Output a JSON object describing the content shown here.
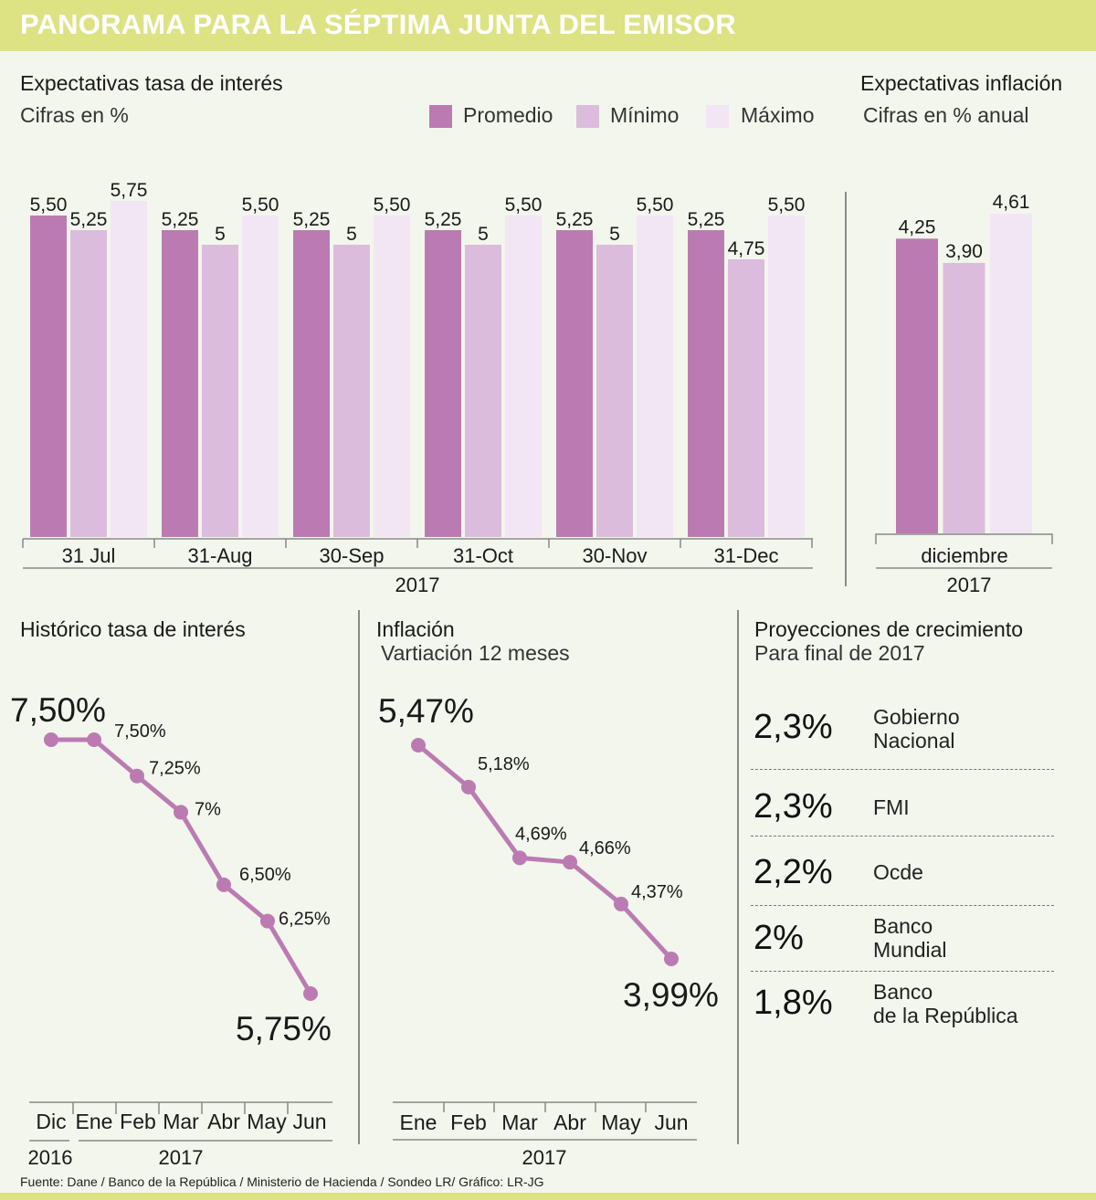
{
  "header": {
    "title": "PANORAMA PARA LA SÉPTIMA JUNTA DEL EMISOR"
  },
  "colors": {
    "promedio": "#bb7bb2",
    "minimo": "#dcbcdc",
    "maximo": "#f2e6f4",
    "line": "#bb7bb2",
    "header_bg": "#dde283",
    "background": "#f2f6ec"
  },
  "legend": {
    "items": [
      {
        "label": "Promedio",
        "color": "#bb7bb2"
      },
      {
        "label": "Mínimo",
        "color": "#dcbcdc"
      },
      {
        "label": "Máximo",
        "color": "#f2e6f4"
      }
    ]
  },
  "chart_data": [
    {
      "id": "interest-expectations",
      "type": "bar",
      "title": "Expectativas tasa de interés",
      "subtitle": "Cifras en %",
      "categories": [
        "31 Jul",
        "31-Aug",
        "30-Sep",
        "31-Oct",
        "30-Nov",
        "31-Dec"
      ],
      "year_label": "2017",
      "series": [
        {
          "name": "Promedio",
          "values": [
            5.5,
            5.25,
            5.25,
            5.25,
            5.25,
            5.25
          ],
          "labels": [
            "5,50",
            "5,25",
            "5,25",
            "5,25",
            "5,25",
            "5,25"
          ]
        },
        {
          "name": "Mínimo",
          "values": [
            5.25,
            5,
            5,
            5,
            5,
            4.75
          ],
          "labels": [
            "5,25",
            "5",
            "5",
            "5",
            "5",
            "4,75"
          ]
        },
        {
          "name": "Máximo",
          "values": [
            5.75,
            5.5,
            5.5,
            5.5,
            5.5,
            5.5
          ],
          "labels": [
            "5,75",
            "5,50",
            "5,50",
            "5,50",
            "5,50",
            "5,50"
          ]
        }
      ],
      "ylim": [
        0,
        5.75
      ],
      "grid": false,
      "legend": "top-right"
    },
    {
      "id": "inflation-expectations",
      "type": "bar",
      "title": "Expectativas inflación",
      "subtitle": "Cifras en % anual",
      "categories": [
        "diciembre"
      ],
      "year_label": "2017",
      "series": [
        {
          "name": "Promedio",
          "values": [
            4.25
          ],
          "labels": [
            "4,25"
          ]
        },
        {
          "name": "Mínimo",
          "values": [
            3.9
          ],
          "labels": [
            "3,90"
          ]
        },
        {
          "name": "Máximo",
          "values": [
            4.61
          ],
          "labels": [
            "4,61"
          ]
        }
      ],
      "ylim": [
        0,
        4.61
      ],
      "grid": false
    },
    {
      "id": "interest-history",
      "type": "line",
      "title": "Histórico tasa de interés",
      "categories": [
        "Dic",
        "Ene",
        "Feb",
        "Mar",
        "Abr",
        "May",
        "Jun"
      ],
      "year_labels": [
        {
          "label": "2016",
          "span": [
            "Dic"
          ]
        },
        {
          "label": "2017",
          "span": [
            "Ene",
            "Jun"
          ]
        }
      ],
      "values": [
        7.5,
        7.5,
        7.25,
        7.0,
        6.5,
        6.25,
        5.75
      ],
      "labels": [
        "7,50%",
        "7,50%",
        "7,25%",
        "7%",
        "6,50%",
        "6,25%",
        "5,75%"
      ],
      "ylim": [
        5.75,
        7.5
      ],
      "grid": false
    },
    {
      "id": "inflation-history",
      "type": "line",
      "title": "Inflación",
      "subtitle": "Vartiación 12 meses",
      "categories": [
        "Ene",
        "Feb",
        "Mar",
        "Abr",
        "May",
        "Jun"
      ],
      "year_label": "2017",
      "values": [
        5.47,
        5.18,
        4.69,
        4.66,
        4.37,
        3.99
      ],
      "labels": [
        "5,47%",
        "5,18%",
        "4,69%",
        "4,66%",
        "4,37%",
        "3,99%"
      ],
      "ylim": [
        3.99,
        5.47
      ],
      "grid": false
    }
  ],
  "projections": {
    "title": "Proyecciones de crecimiento",
    "subtitle": "Para final de 2017",
    "items": [
      {
        "value": "2,3%",
        "line1": "Gobierno",
        "line2": "Nacional"
      },
      {
        "value": "2,3%",
        "line1": "FMI",
        "line2": ""
      },
      {
        "value": "2,2%",
        "line1": "Ocde",
        "line2": ""
      },
      {
        "value": "2%",
        "line1": "Banco",
        "line2": "Mundial"
      },
      {
        "value": "1,8%",
        "line1": "Banco",
        "line2": "de la República"
      }
    ]
  },
  "source": "Fuente:  Dane / Banco de la República / Ministerio de Hacienda / Sondeo LR/ Gráfico: LR-JG"
}
